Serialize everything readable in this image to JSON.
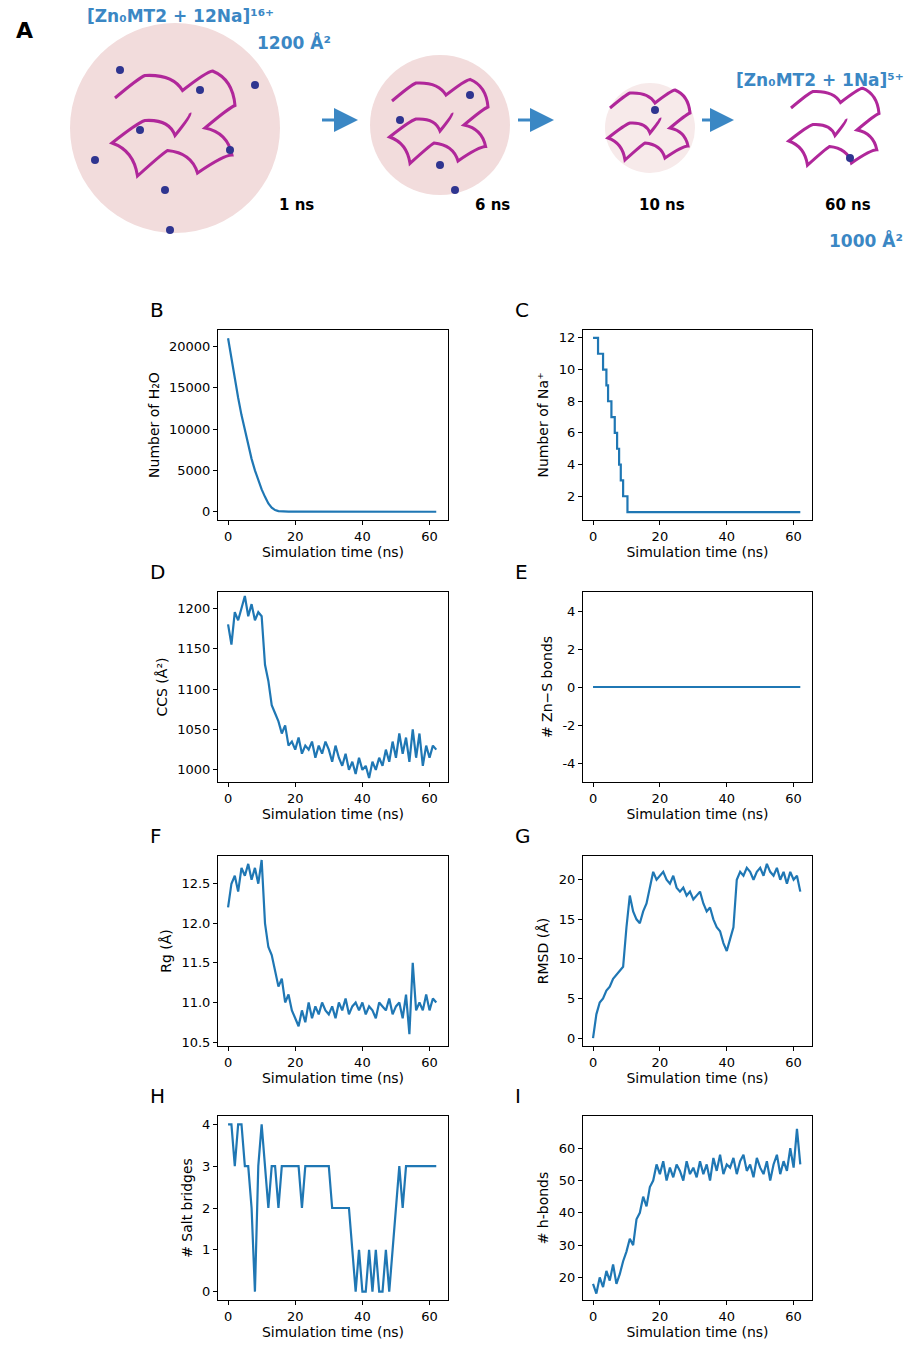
{
  "panel_a": {
    "label": "A",
    "start_ion": "[Zn₀MT2 + 12Na]¹⁶⁺",
    "start_ccs": "1200 Å²",
    "frames": [
      "1 ns",
      "6 ns",
      "10 ns",
      "60 ns"
    ],
    "end_ion": "[Zn₀MT2 + 1Na]⁵⁺",
    "end_ccs": "1000 Å²"
  },
  "chart_data": [
    {
      "type": "line",
      "title": "B",
      "x_label": "Simulation time (ns)",
      "y_label": "Number of H₂O",
      "color": "#1f77b4",
      "line_style": "solid",
      "grid": false,
      "x": [
        0,
        1,
        2,
        3,
        4,
        5,
        6,
        7,
        8,
        9,
        10,
        11,
        12,
        13,
        14,
        15,
        16,
        18,
        20,
        25,
        30,
        40,
        50,
        62
      ],
      "values": [
        21000,
        18500,
        16000,
        13800,
        11700,
        9800,
        8000,
        6400,
        5000,
        3800,
        2700,
        1800,
        1000,
        500,
        200,
        80,
        30,
        10,
        5,
        2,
        0,
        0,
        0,
        0
      ],
      "xlim": [
        -3,
        65.5
      ],
      "ylim": [
        -1000,
        22000
      ],
      "xticks": [
        0,
        20,
        40,
        60
      ],
      "yticks": [
        0,
        5000,
        10000,
        15000,
        20000
      ]
    },
    {
      "type": "line",
      "title": "C",
      "x_label": "Simulation time (ns)",
      "y_label": "Number of Na⁺",
      "color": "#1f77b4",
      "line_style": "step",
      "grid": false,
      "x": [
        0,
        1.5,
        3,
        4,
        4.5,
        5.5,
        6.5,
        7.2,
        7.8,
        8.3,
        9,
        10.3,
        62
      ],
      "values": [
        12,
        11,
        10,
        9,
        8,
        7,
        6,
        5,
        4,
        3,
        2,
        1,
        1
      ],
      "xlim": [
        -3,
        65.5
      ],
      "ylim": [
        0.5,
        12.5
      ],
      "xticks": [
        0,
        20,
        40,
        60
      ],
      "yticks": [
        2,
        4,
        6,
        8,
        10,
        12
      ]
    },
    {
      "type": "line",
      "title": "D",
      "x_label": "Simulation time (ns)",
      "y_label": "CCS (Å²)",
      "color": "#1f77b4",
      "line_style": "solid",
      "grid": false,
      "x": [
        0,
        1,
        2,
        3,
        4,
        5,
        6,
        7,
        8,
        9,
        10,
        11,
        12,
        13,
        14,
        15,
        16,
        17,
        18,
        19,
        20,
        21,
        22,
        23,
        24,
        25,
        26,
        27,
        28,
        29,
        30,
        31,
        32,
        33,
        34,
        35,
        36,
        37,
        38,
        39,
        40,
        41,
        42,
        43,
        44,
        45,
        46,
        47,
        48,
        49,
        50,
        51,
        52,
        53,
        54,
        55,
        56,
        57,
        58,
        59,
        60,
        61,
        62
      ],
      "values": [
        1180,
        1155,
        1195,
        1185,
        1200,
        1215,
        1190,
        1205,
        1185,
        1195,
        1190,
        1130,
        1110,
        1080,
        1070,
        1060,
        1045,
        1055,
        1030,
        1035,
        1025,
        1040,
        1020,
        1030,
        1025,
        1035,
        1015,
        1030,
        1020,
        1035,
        1025,
        1010,
        1030,
        1015,
        1005,
        1020,
        1000,
        1010,
        995,
        1015,
        1000,
        1005,
        990,
        1010,
        1000,
        1015,
        1005,
        1025,
        1010,
        1035,
        1015,
        1045,
        1020,
        1040,
        1010,
        1050,
        1015,
        1045,
        1005,
        1030,
        1015,
        1030,
        1025
      ],
      "xlim": [
        -3,
        65.5
      ],
      "ylim": [
        985,
        1220
      ],
      "xticks": [
        0,
        20,
        40,
        60
      ],
      "yticks": [
        1000,
        1050,
        1100,
        1150,
        1200
      ]
    },
    {
      "type": "line",
      "title": "E",
      "x_label": "Simulation time (ns)",
      "y_label": "# Zn−S bonds",
      "color": "#1f77b4",
      "line_style": "solid",
      "grid": false,
      "x": [
        0,
        62
      ],
      "values": [
        0,
        0
      ],
      "xlim": [
        -3,
        65.5
      ],
      "ylim": [
        -5,
        5
      ],
      "xticks": [
        0,
        20,
        40,
        60
      ],
      "yticks": [
        -4,
        -2,
        0,
        2,
        4
      ]
    },
    {
      "type": "line",
      "title": "F",
      "x_label": "Simulation time (ns)",
      "y_label": "Rg (Å)",
      "color": "#1f77b4",
      "line_style": "solid",
      "grid": false,
      "x": [
        0,
        1,
        2,
        3,
        4,
        5,
        6,
        7,
        8,
        9,
        10,
        11,
        12,
        13,
        14,
        15,
        16,
        17,
        18,
        19,
        20,
        21,
        22,
        23,
        24,
        25,
        26,
        27,
        28,
        29,
        30,
        31,
        32,
        33,
        34,
        35,
        36,
        37,
        38,
        39,
        40,
        41,
        42,
        43,
        44,
        45,
        46,
        47,
        48,
        49,
        50,
        51,
        52,
        53,
        54,
        55,
        56,
        57,
        58,
        59,
        60,
        61,
        62
      ],
      "values": [
        12.2,
        12.5,
        12.6,
        12.4,
        12.7,
        12.6,
        12.75,
        12.55,
        12.7,
        12.5,
        12.8,
        12.0,
        11.7,
        11.6,
        11.4,
        11.2,
        11.3,
        11.0,
        11.1,
        10.9,
        10.8,
        10.7,
        10.9,
        10.75,
        11.0,
        10.8,
        10.95,
        10.85,
        11.0,
        10.9,
        10.85,
        10.95,
        10.8,
        11.0,
        10.9,
        11.05,
        10.85,
        10.95,
        11.0,
        10.9,
        11.0,
        10.85,
        10.95,
        10.9,
        10.8,
        11.0,
        10.95,
        10.9,
        11.05,
        10.85,
        10.95,
        11.0,
        10.8,
        11.1,
        10.6,
        11.5,
        10.9,
        11.0,
        10.9,
        11.1,
        10.9,
        11.05,
        11.0
      ],
      "xlim": [
        -3,
        65.5
      ],
      "ylim": [
        10.45,
        12.85
      ],
      "xticks": [
        0,
        20,
        40,
        60
      ],
      "yticks": [
        10.5,
        {
          "value": 11,
          "label": "11.0"
        },
        11.5,
        {
          "value": 12,
          "label": "12.0"
        },
        12.5
      ]
    },
    {
      "type": "line",
      "title": "G",
      "x_label": "Simulation time (ns)",
      "y_label": "RMSD (Å)",
      "color": "#1f77b4",
      "line_style": "solid",
      "grid": false,
      "x": [
        0,
        1,
        2,
        3,
        4,
        5,
        6,
        7,
        8,
        9,
        10,
        11,
        12,
        13,
        14,
        15,
        16,
        17,
        18,
        19,
        20,
        21,
        22,
        23,
        24,
        25,
        26,
        27,
        28,
        29,
        30,
        31,
        32,
        33,
        34,
        35,
        36,
        37,
        38,
        39,
        40,
        41,
        42,
        43,
        44,
        45,
        46,
        47,
        48,
        49,
        50,
        51,
        52,
        53,
        54,
        55,
        56,
        57,
        58,
        59,
        60,
        61,
        62
      ],
      "values": [
        0,
        3,
        4.5,
        5,
        6,
        6.5,
        7.5,
        8,
        8.5,
        9,
        14,
        18,
        16,
        15,
        14.5,
        16,
        17,
        19,
        21,
        20,
        20.5,
        21,
        20,
        19.5,
        20.5,
        19,
        18.5,
        19,
        18,
        18.5,
        17.5,
        18,
        18.5,
        17,
        16,
        16.5,
        15,
        14,
        13.5,
        12,
        11,
        12.5,
        14,
        20,
        21,
        20.5,
        21.5,
        21,
        20,
        21,
        21.5,
        20.5,
        22,
        21,
        20.5,
        21.5,
        20,
        21,
        19.5,
        21,
        20,
        20.5,
        18.5
      ],
      "xlim": [
        -3,
        65.5
      ],
      "ylim": [
        -1,
        23
      ],
      "xticks": [
        0,
        20,
        40,
        60
      ],
      "yticks": [
        0,
        5,
        10,
        15,
        20
      ]
    },
    {
      "type": "line",
      "title": "H",
      "x_label": "Simulation time (ns)",
      "y_label": "# Salt bridges",
      "color": "#1f77b4",
      "line_style": "solid",
      "grid": false,
      "x": [
        0,
        1,
        2,
        3,
        4,
        5,
        6,
        7,
        8,
        9,
        10,
        11,
        12,
        13,
        14,
        15,
        16,
        17,
        18,
        19,
        20,
        21,
        22,
        23,
        24,
        25,
        26,
        27,
        28,
        29,
        30,
        31,
        32,
        33,
        34,
        35,
        36,
        37,
        38,
        39,
        40,
        41,
        42,
        43,
        44,
        45,
        46,
        47,
        48,
        49,
        50,
        51,
        52,
        53,
        54,
        55,
        56,
        57,
        58,
        59,
        60,
        61,
        62
      ],
      "values": [
        4,
        4,
        3,
        4,
        4,
        3,
        3,
        2,
        0,
        3,
        4,
        3,
        2,
        3,
        3,
        2,
        3,
        3,
        3,
        3,
        3,
        3,
        2,
        3,
        3,
        3,
        3,
        3,
        3,
        3,
        3,
        2,
        2,
        2,
        2,
        2,
        2,
        1,
        0,
        1,
        0,
        0,
        1,
        0,
        1,
        0,
        0,
        1,
        0,
        1,
        2,
        3,
        2,
        3,
        3,
        3,
        3,
        3,
        3,
        3,
        3,
        3,
        3
      ],
      "xlim": [
        -3,
        65.5
      ],
      "ylim": [
        -0.2,
        4.2
      ],
      "xticks": [
        0,
        20,
        40,
        60
      ],
      "yticks": [
        0,
        1,
        2,
        3,
        4
      ]
    },
    {
      "type": "line",
      "title": "I",
      "x_label": "Simulation time (ns)",
      "y_label": "# h-bonds",
      "color": "#1f77b4",
      "line_style": "solid",
      "grid": false,
      "x": [
        0,
        1,
        2,
        3,
        4,
        5,
        6,
        7,
        8,
        9,
        10,
        11,
        12,
        13,
        14,
        15,
        16,
        17,
        18,
        19,
        20,
        21,
        22,
        23,
        24,
        25,
        26,
        27,
        28,
        29,
        30,
        31,
        32,
        33,
        34,
        35,
        36,
        37,
        38,
        39,
        40,
        41,
        42,
        43,
        44,
        45,
        46,
        47,
        48,
        49,
        50,
        51,
        52,
        53,
        54,
        55,
        56,
        57,
        58,
        59,
        60,
        61,
        62
      ],
      "values": [
        18,
        15,
        20,
        17,
        22,
        19,
        24,
        18,
        21,
        25,
        28,
        32,
        30,
        38,
        40,
        45,
        42,
        48,
        50,
        55,
        52,
        56,
        50,
        54,
        51,
        55,
        53,
        50,
        56,
        52,
        54,
        51,
        56,
        52,
        55,
        50,
        57,
        53,
        58,
        52,
        55,
        54,
        57,
        52,
        56,
        58,
        53,
        55,
        51,
        57,
        54,
        52,
        56,
        50,
        55,
        58,
        52,
        56,
        53,
        60,
        54,
        66,
        55
      ],
      "xlim": [
        -3,
        65.5
      ],
      "ylim": [
        13,
        70
      ],
      "xticks": [
        0,
        20,
        40,
        60
      ],
      "yticks": [
        20,
        30,
        40,
        50,
        60
      ]
    }
  ]
}
